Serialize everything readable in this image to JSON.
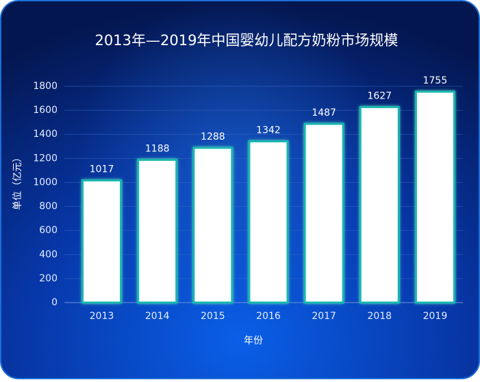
{
  "chart_data": {
    "type": "bar",
    "title": "2013年—2019年中国婴幼儿配方奶粉市场规模",
    "x_label": "年份",
    "y_label": "单位（亿元）",
    "categories": [
      "2013",
      "2014",
      "2015",
      "2016",
      "2017",
      "2018",
      "2019"
    ],
    "values": [
      1017,
      1188,
      1288,
      1342,
      1487,
      1627,
      1755
    ],
    "color": "#ffffff",
    "ylim": [
      0,
      1800
    ],
    "yticks": [
      0,
      200,
      400,
      600,
      800,
      1000,
      1200,
      1400,
      1600,
      1800
    ],
    "grid": true
  }
}
